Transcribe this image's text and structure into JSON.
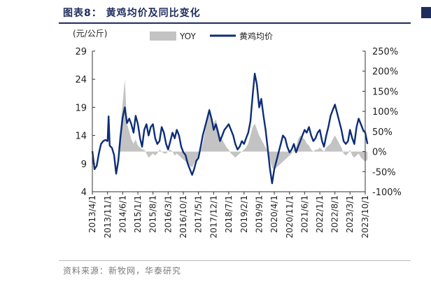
{
  "figure": {
    "title": "图表8： 黄鸡均价及同比变化",
    "source": "资料来源：新牧网，华泰研究"
  },
  "colors": {
    "price": "#0d2d78",
    "yoy": "#c3c3c3",
    "title": "#1f2d5c"
  },
  "chart_data": {
    "type": "line",
    "ylabel": "(元/公斤)",
    "legend_position": "top",
    "grid": false,
    "y_left": {
      "min": 4,
      "max": 29,
      "ticks": [
        4,
        9,
        14,
        19,
        24,
        29
      ]
    },
    "y_right": {
      "min": -100,
      "max": 250,
      "ticks": [
        "-100%",
        "-50%",
        "0%",
        "50%",
        "100%",
        "150%",
        "200%",
        "250%"
      ]
    },
    "x_ticks": [
      "2013/4/1",
      "2013/11/1",
      "2014/6/1",
      "2015/1/1",
      "2015/8/1",
      "2016/3/1",
      "2016/10/1",
      "2017/5/1",
      "2017/12/1",
      "2018/7/1",
      "2019/2/1",
      "2019/9/1",
      "2020/4/1",
      "2020/11/1",
      "2021/6/1",
      "2022/1/1",
      "2022/8/1",
      "2023/3/1",
      "2023/10/1"
    ],
    "series": [
      {
        "name": "黄鸡均价",
        "axis": "left",
        "chart_type": "line",
        "points": [
          [
            "2013/4/1",
            11.2
          ],
          [
            "2013/5/1",
            8.0
          ],
          [
            "2013/6/1",
            8.6
          ],
          [
            "2013/7/1",
            10.8
          ],
          [
            "2013/8/1",
            12.5
          ],
          [
            "2013/9/1",
            13.0
          ],
          [
            "2013/10/1",
            13.2
          ],
          [
            "2013/11/1",
            13.0
          ],
          [
            "2013/11/15",
            17.4
          ],
          [
            "2013/12/1",
            12.2
          ],
          [
            "2014/1/1",
            11.8
          ],
          [
            "2014/2/1",
            10.5
          ],
          [
            "2014/3/1",
            7.2
          ],
          [
            "2014/4/1",
            9.5
          ],
          [
            "2014/5/1",
            13.8
          ],
          [
            "2014/6/1",
            17.2
          ],
          [
            "2014/7/1",
            19.0
          ],
          [
            "2014/8/1",
            16.2
          ],
          [
            "2014/9/1",
            17.0
          ],
          [
            "2014/10/1",
            16.0
          ],
          [
            "2014/11/1",
            14.5
          ],
          [
            "2014/12/1",
            17.5
          ],
          [
            "2015/1/1",
            16.0
          ],
          [
            "2015/2/1",
            13.5
          ],
          [
            "2015/3/1",
            12.0
          ],
          [
            "2015/4/1",
            15.0
          ],
          [
            "2015/5/1",
            16.0
          ],
          [
            "2015/6/1",
            14.0
          ],
          [
            "2015/7/1",
            15.5
          ],
          [
            "2015/8/1",
            16.0
          ],
          [
            "2015/9/1",
            13.5
          ],
          [
            "2015/10/1",
            12.5
          ],
          [
            "2015/11/1",
            13.0
          ],
          [
            "2015/12/1",
            15.5
          ],
          [
            "2016/1/1",
            14.5
          ],
          [
            "2016/2/1",
            12.5
          ],
          [
            "2016/3/1",
            11.5
          ],
          [
            "2016/4/1",
            13.0
          ],
          [
            "2016/5/1",
            14.5
          ],
          [
            "2016/6/1",
            13.5
          ],
          [
            "2016/7/1",
            15.0
          ],
          [
            "2016/8/1",
            14.0
          ],
          [
            "2016/9/1",
            12.0
          ],
          [
            "2016/10/1",
            11.0
          ],
          [
            "2016/11/1",
            10.5
          ],
          [
            "2016/12/1",
            9.0
          ],
          [
            "2017/1/1",
            8.0
          ],
          [
            "2017/2/1",
            7.0
          ],
          [
            "2017/3/1",
            8.0
          ],
          [
            "2017/4/1",
            9.5
          ],
          [
            "2017/5/1",
            10.0
          ],
          [
            "2017/6/1",
            12.0
          ],
          [
            "2017/7/1",
            14.0
          ],
          [
            "2017/8/1",
            15.5
          ],
          [
            "2017/9/1",
            17.0
          ],
          [
            "2017/10/1",
            18.5
          ],
          [
            "2017/11/1",
            17.0
          ],
          [
            "2017/12/1",
            15.0
          ],
          [
            "2018/1/1",
            16.0
          ],
          [
            "2018/2/1",
            14.5
          ],
          [
            "2018/3/1",
            13.0
          ],
          [
            "2018/4/1",
            14.0
          ],
          [
            "2018/5/1",
            15.0
          ],
          [
            "2018/6/1",
            15.5
          ],
          [
            "2018/7/1",
            16.0
          ],
          [
            "2018/8/1",
            15.0
          ],
          [
            "2018/9/1",
            14.0
          ],
          [
            "2018/10/1",
            12.5
          ],
          [
            "2018/11/1",
            11.5
          ],
          [
            "2018/12/1",
            12.0
          ],
          [
            "2019/1/1",
            13.0
          ],
          [
            "2019/2/1",
            12.5
          ],
          [
            "2019/3/1",
            13.5
          ],
          [
            "2019/4/1",
            14.5
          ],
          [
            "2019/5/1",
            16.5
          ],
          [
            "2019/6/1",
            21.0
          ],
          [
            "2019/7/1",
            25.0
          ],
          [
            "2019/8/1",
            23.0
          ],
          [
            "2019/9/1",
            19.0
          ],
          [
            "2019/10/1",
            20.5
          ],
          [
            "2019/11/1",
            17.5
          ],
          [
            "2019/12/1",
            15.0
          ],
          [
            "2020/1/1",
            11.5
          ],
          [
            "2020/2/1",
            8.0
          ],
          [
            "2020/3/1",
            5.5
          ],
          [
            "2020/4/1",
            8.0
          ],
          [
            "2020/5/1",
            9.5
          ],
          [
            "2020/6/1",
            11.0
          ],
          [
            "2020/7/1",
            12.5
          ],
          [
            "2020/8/1",
            14.0
          ],
          [
            "2020/9/1",
            13.5
          ],
          [
            "2020/10/1",
            12.0
          ],
          [
            "2020/11/1",
            11.0
          ],
          [
            "2020/12/1",
            11.5
          ],
          [
            "2021/1/1",
            12.5
          ],
          [
            "2021/2/1",
            11.0
          ],
          [
            "2021/3/1",
            12.0
          ],
          [
            "2021/4/1",
            13.0
          ],
          [
            "2021/5/1",
            14.0
          ],
          [
            "2021/6/1",
            15.0
          ],
          [
            "2021/7/1",
            14.5
          ],
          [
            "2021/8/1",
            15.5
          ],
          [
            "2021/9/1",
            14.0
          ],
          [
            "2021/10/1",
            13.0
          ],
          [
            "2021/11/1",
            13.5
          ],
          [
            "2021/12/1",
            14.5
          ],
          [
            "2022/1/1",
            15.0
          ],
          [
            "2022/2/1",
            13.0
          ],
          [
            "2022/3/1",
            12.0
          ],
          [
            "2022/4/1",
            14.0
          ],
          [
            "2022/5/1",
            15.5
          ],
          [
            "2022/6/1",
            17.5
          ],
          [
            "2022/7/1",
            18.5
          ],
          [
            "2022/8/1",
            19.5
          ],
          [
            "2022/9/1",
            18.0
          ],
          [
            "2022/10/1",
            16.5
          ],
          [
            "2022/11/1",
            15.0
          ],
          [
            "2022/12/1",
            13.0
          ],
          [
            "2023/1/1",
            12.5
          ],
          [
            "2023/2/1",
            13.0
          ],
          [
            "2023/3/1",
            15.0
          ],
          [
            "2023/4/1",
            13.5
          ],
          [
            "2023/5/1",
            12.5
          ],
          [
            "2023/6/1",
            15.5
          ],
          [
            "2023/7/1",
            17.0
          ],
          [
            "2023/8/1",
            16.0
          ],
          [
            "2023/9/1",
            15.0
          ],
          [
            "2023/10/1",
            14.5
          ],
          [
            "2023/11/1",
            12.5
          ]
        ]
      },
      {
        "name": "YOY",
        "axis": "right",
        "chart_type": "area",
        "points": [
          [
            "2014/4/1",
            10
          ],
          [
            "2014/5/1",
            60
          ],
          [
            "2014/6/1",
            120
          ],
          [
            "2014/7/1",
            180
          ],
          [
            "2014/8/1",
            70
          ],
          [
            "2014/9/1",
            50
          ],
          [
            "2014/10/1",
            30
          ],
          [
            "2014/11/1",
            20
          ],
          [
            "2014/12/1",
            30
          ],
          [
            "2015/1/1",
            15
          ],
          [
            "2015/2/1",
            10
          ],
          [
            "2015/3/1",
            5
          ],
          [
            "2015/4/1",
            5
          ],
          [
            "2015/5/1",
            -5
          ],
          [
            "2015/6/1",
            -15
          ],
          [
            "2015/7/1",
            -10
          ],
          [
            "2015/8/1",
            -5
          ],
          [
            "2015/9/1",
            -10
          ],
          [
            "2015/10/1",
            -5
          ],
          [
            "2015/11/1",
            5
          ],
          [
            "2015/12/1",
            0
          ],
          [
            "2016/1/1",
            -5
          ],
          [
            "2016/2/1",
            -5
          ],
          [
            "2016/3/1",
            0
          ],
          [
            "2016/4/1",
            5
          ],
          [
            "2016/5/1",
            0
          ],
          [
            "2016/6/1",
            -10
          ],
          [
            "2016/7/1",
            -5
          ],
          [
            "2016/8/1",
            -10
          ],
          [
            "2016/9/1",
            -15
          ],
          [
            "2016/10/1",
            -20
          ],
          [
            "2016/11/1",
            -25
          ],
          [
            "2016/12/1",
            -30
          ],
          [
            "2017/1/1",
            -35
          ],
          [
            "2017/2/1",
            -40
          ],
          [
            "2017/3/1",
            -30
          ],
          [
            "2017/4/1",
            -20
          ],
          [
            "2017/5/1",
            -15
          ],
          [
            "2017/6/1",
            0
          ],
          [
            "2017/7/1",
            20
          ],
          [
            "2017/8/1",
            50
          ],
          [
            "2017/9/1",
            80
          ],
          [
            "2017/10/1",
            110
          ],
          [
            "2017/11/1",
            90
          ],
          [
            "2017/12/1",
            70
          ],
          [
            "2018/1/1",
            80
          ],
          [
            "2018/2/1",
            60
          ],
          [
            "2018/3/1",
            40
          ],
          [
            "2018/4/1",
            30
          ],
          [
            "2018/5/1",
            20
          ],
          [
            "2018/6/1",
            10
          ],
          [
            "2018/7/1",
            5
          ],
          [
            "2018/8/1",
            -5
          ],
          [
            "2018/9/1",
            -10
          ],
          [
            "2018/10/1",
            -15
          ],
          [
            "2018/11/1",
            -10
          ],
          [
            "2018/12/1",
            -5
          ],
          [
            "2019/1/1",
            0
          ],
          [
            "2019/2/1",
            5
          ],
          [
            "2019/3/1",
            10
          ],
          [
            "2019/4/1",
            20
          ],
          [
            "2019/5/1",
            40
          ],
          [
            "2019/6/1",
            60
          ],
          [
            "2019/7/1",
            70
          ],
          [
            "2019/8/1",
            55
          ],
          [
            "2019/9/1",
            40
          ],
          [
            "2019/10/1",
            30
          ],
          [
            "2019/11/1",
            20
          ],
          [
            "2019/12/1",
            10
          ],
          [
            "2020/1/1",
            0
          ],
          [
            "2020/2/1",
            -20
          ],
          [
            "2020/3/1",
            -40
          ],
          [
            "2020/4/1",
            -45
          ],
          [
            "2020/5/1",
            -40
          ],
          [
            "2020/6/1",
            -35
          ],
          [
            "2020/7/1",
            -30
          ],
          [
            "2020/8/1",
            -25
          ],
          [
            "2020/9/1",
            -20
          ],
          [
            "2020/10/1",
            -15
          ],
          [
            "2020/11/1",
            -10
          ],
          [
            "2020/12/1",
            -5
          ],
          [
            "2021/1/1",
            5
          ],
          [
            "2021/2/1",
            10
          ],
          [
            "2021/3/1",
            30
          ],
          [
            "2021/4/1",
            40
          ],
          [
            "2021/5/1",
            35
          ],
          [
            "2021/6/1",
            30
          ],
          [
            "2021/7/1",
            20
          ],
          [
            "2021/8/1",
            15
          ],
          [
            "2021/9/1",
            5
          ],
          [
            "2021/10/1",
            0
          ],
          [
            "2021/11/1",
            5
          ],
          [
            "2021/12/1",
            5
          ],
          [
            "2022/1/1",
            10
          ],
          [
            "2022/2/1",
            5
          ],
          [
            "2022/3/1",
            0
          ],
          [
            "2022/4/1",
            10
          ],
          [
            "2022/5/1",
            15
          ],
          [
            "2022/6/1",
            20
          ],
          [
            "2022/7/1",
            30
          ],
          [
            "2022/8/1",
            40
          ],
          [
            "2022/9/1",
            30
          ],
          [
            "2022/10/1",
            20
          ],
          [
            "2022/11/1",
            10
          ],
          [
            "2022/12/1",
            -5
          ],
          [
            "2023/1/1",
            -10
          ],
          [
            "2023/2/1",
            -5
          ],
          [
            "2023/3/1",
            5
          ],
          [
            "2023/4/1",
            -10
          ],
          [
            "2023/5/1",
            -15
          ],
          [
            "2023/6/1",
            -10
          ],
          [
            "2023/7/1",
            -5
          ],
          [
            "2023/8/1",
            -15
          ],
          [
            "2023/9/1",
            -20
          ],
          [
            "2023/10/1",
            -25
          ],
          [
            "2023/11/1",
            -20
          ]
        ]
      }
    ]
  }
}
